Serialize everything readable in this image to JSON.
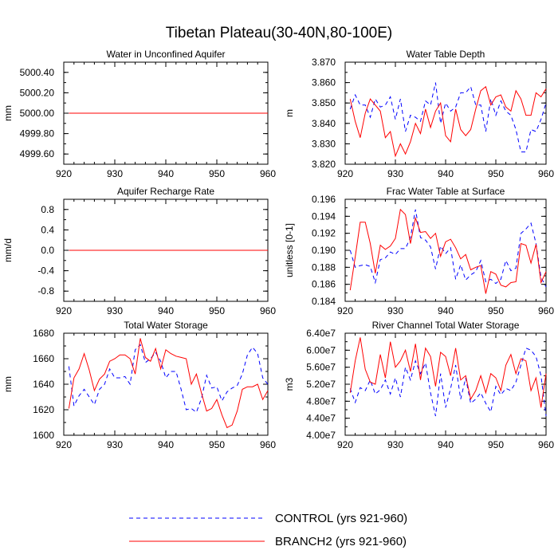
{
  "title": "Tibetan Plateau(30-40N,80-100E)",
  "colors": {
    "control": "#0000ff",
    "branch": "#ff0000"
  },
  "legend": [
    {
      "label": "CONTROL (yrs 921-960)",
      "color": "#0000ff",
      "style": "dashed"
    },
    {
      "label": "BRANCH2 (yrs 921-960)",
      "color": "#ff0000",
      "style": "solid"
    }
  ],
  "chart_data": [
    {
      "type": "line",
      "title": "Water in Unconfined Aquifer",
      "xlabel": "",
      "ylabel": "mm",
      "xlim": [
        920,
        960
      ],
      "ylim": [
        4999.5,
        5000.5
      ],
      "xticks": [
        920,
        930,
        940,
        950,
        960
      ],
      "yticks": [
        4999.6,
        4999.8,
        5000.0,
        5000.2,
        5000.4
      ],
      "ytick_labels": [
        "4999.60",
        "4999.80",
        "5000.00",
        "5000.20",
        "5000.40"
      ],
      "x": [
        921,
        960
      ],
      "series": [
        {
          "name": "CONTROL (yrs 921-960)",
          "values": [
            5000.0,
            5000.0
          ]
        },
        {
          "name": "BRANCH2 (yrs 921-960)",
          "values": [
            5000.0,
            5000.0
          ]
        }
      ]
    },
    {
      "type": "line",
      "title": "Water Table Depth",
      "xlabel": "",
      "ylabel": "m",
      "xlim": [
        920,
        960
      ],
      "ylim": [
        3.82,
        3.87
      ],
      "xticks": [
        920,
        930,
        940,
        950,
        960
      ],
      "yticks": [
        3.82,
        3.83,
        3.84,
        3.85,
        3.86,
        3.87
      ],
      "ytick_labels": [
        "3.820",
        "3.830",
        "3.840",
        "3.850",
        "3.860",
        "3.870"
      ],
      "x": [
        921,
        922,
        923,
        924,
        925,
        926,
        927,
        928,
        929,
        930,
        931,
        932,
        933,
        934,
        935,
        936,
        937,
        938,
        939,
        940,
        941,
        942,
        943,
        944,
        945,
        946,
        947,
        948,
        949,
        950,
        951,
        952,
        953,
        954,
        955,
        956,
        957,
        958,
        959,
        960
      ],
      "series": [
        {
          "name": "CONTROL (yrs 921-960)",
          "values": [
            3.847,
            3.854,
            3.849,
            3.849,
            3.843,
            3.852,
            3.848,
            3.849,
            3.853,
            3.842,
            3.852,
            3.836,
            3.844,
            3.843,
            3.841,
            3.851,
            3.849,
            3.86,
            3.84,
            3.85,
            3.846,
            3.848,
            3.855,
            3.855,
            3.858,
            3.849,
            3.849,
            3.836,
            3.852,
            3.844,
            3.851,
            3.846,
            3.844,
            3.837,
            3.826,
            3.826,
            3.837,
            3.836,
            3.842,
            3.85
          ]
        },
        {
          "name": "BRANCH2 (yrs 921-960)",
          "values": [
            3.852,
            3.841,
            3.833,
            3.845,
            3.852,
            3.849,
            3.846,
            3.833,
            3.836,
            3.824,
            3.83,
            3.825,
            3.831,
            3.84,
            3.835,
            3.847,
            3.838,
            3.846,
            3.85,
            3.834,
            3.831,
            3.847,
            3.837,
            3.834,
            3.837,
            3.847,
            3.856,
            3.858,
            3.849,
            3.853,
            3.854,
            3.848,
            3.846,
            3.856,
            3.852,
            3.844,
            3.844,
            3.855,
            3.853,
            3.857
          ]
        }
      ]
    },
    {
      "type": "line",
      "title": "Aquifer Recharge Rate",
      "xlabel": "",
      "ylabel": "mm/d",
      "xlim": [
        920,
        960
      ],
      "ylim": [
        -1.0,
        1.0
      ],
      "xticks": [
        920,
        930,
        940,
        950,
        960
      ],
      "yticks": [
        -0.8,
        -0.4,
        0.0,
        0.4,
        0.8
      ],
      "ytick_labels": [
        "-0.8",
        "-0.4",
        "0.0",
        "0.4",
        "0.8"
      ],
      "x": [
        921,
        960
      ],
      "series": [
        {
          "name": "CONTROL (yrs 921-960)",
          "values": [
            0.0,
            0.0
          ]
        },
        {
          "name": "BRANCH2 (yrs 921-960)",
          "values": [
            0.0,
            0.0
          ]
        }
      ]
    },
    {
      "type": "line",
      "title": "Frac Water Table at Surface",
      "xlabel": "",
      "ylabel": "unitless [0-1]",
      "xlim": [
        920,
        960
      ],
      "ylim": [
        0.184,
        0.196
      ],
      "xticks": [
        920,
        930,
        940,
        950,
        960
      ],
      "yticks": [
        0.184,
        0.186,
        0.188,
        0.19,
        0.192,
        0.194,
        0.196
      ],
      "ytick_labels": [
        "0.184",
        "0.186",
        "0.188",
        "0.190",
        "0.192",
        "0.194",
        "0.196"
      ],
      "x": [
        921,
        922,
        923,
        924,
        925,
        926,
        927,
        928,
        929,
        930,
        931,
        932,
        933,
        934,
        935,
        936,
        937,
        938,
        939,
        940,
        941,
        942,
        943,
        944,
        945,
        946,
        947,
        948,
        949,
        950,
        951,
        952,
        953,
        954,
        955,
        956,
        957,
        958,
        959,
        960
      ],
      "series": [
        {
          "name": "CONTROL (yrs 921-960)",
          "values": [
            0.19,
            0.188,
            0.1882,
            0.1883,
            0.1881,
            0.1862,
            0.1889,
            0.1891,
            0.1898,
            0.1895,
            0.1902,
            0.1902,
            0.1915,
            0.1948,
            0.1915,
            0.1912,
            0.1904,
            0.1878,
            0.1905,
            0.1896,
            0.1903,
            0.1866,
            0.1883,
            0.1865,
            0.1871,
            0.1875,
            0.1888,
            0.1863,
            0.1866,
            0.1861,
            0.1866,
            0.1888,
            0.1876,
            0.1879,
            0.192,
            0.1925,
            0.1932,
            0.1908,
            0.1868,
            0.1857
          ]
        },
        {
          "name": "BRANCH2 (yrs 921-960)",
          "values": [
            0.1853,
            0.1892,
            0.1933,
            0.1933,
            0.1908,
            0.1873,
            0.1906,
            0.1901,
            0.1905,
            0.1914,
            0.1948,
            0.1942,
            0.1908,
            0.1938,
            0.1921,
            0.1922,
            0.1914,
            0.192,
            0.1893,
            0.191,
            0.1913,
            0.1903,
            0.189,
            0.1895,
            0.1877,
            0.188,
            0.1882,
            0.1849,
            0.1875,
            0.1872,
            0.1859,
            0.1857,
            0.1862,
            0.1863,
            0.1908,
            0.1906,
            0.1885,
            0.1907,
            0.1862,
            0.1875
          ]
        }
      ]
    },
    {
      "type": "line",
      "title": "Total Water Storage",
      "xlabel": "",
      "ylabel": "mm",
      "xlim": [
        920,
        960
      ],
      "ylim": [
        1600,
        1680
      ],
      "xticks": [
        920,
        930,
        940,
        950,
        960
      ],
      "yticks": [
        1600,
        1620,
        1640,
        1660,
        1680
      ],
      "ytick_labels": [
        "1600",
        "1620",
        "1640",
        "1660",
        "1680"
      ],
      "x": [
        921,
        922,
        923,
        924,
        925,
        926,
        927,
        928,
        929,
        930,
        931,
        932,
        933,
        934,
        935,
        936,
        937,
        938,
        939,
        940,
        941,
        942,
        943,
        944,
        945,
        946,
        947,
        948,
        949,
        950,
        951,
        952,
        953,
        954,
        955,
        956,
        957,
        958,
        959,
        960
      ],
      "series": [
        {
          "name": "CONTROL (yrs 921-960)",
          "values": [
            1654,
            1623,
            1631,
            1636,
            1630,
            1624,
            1636,
            1640,
            1652,
            1645,
            1645,
            1646,
            1640,
            1667,
            1671,
            1657,
            1660,
            1665,
            1658,
            1645,
            1650,
            1650,
            1636,
            1620,
            1621,
            1618,
            1629,
            1647,
            1637,
            1638,
            1627,
            1634,
            1637,
            1639,
            1648,
            1663,
            1669,
            1664,
            1645,
            1640
          ]
        },
        {
          "name": "BRANCH2 (yrs 921-960)",
          "values": [
            1621,
            1645,
            1652,
            1664,
            1651,
            1635,
            1644,
            1648,
            1658,
            1660,
            1663,
            1663,
            1660,
            1648,
            1676,
            1661,
            1658,
            1668,
            1652,
            1667,
            1664,
            1662,
            1661,
            1660,
            1640,
            1648,
            1633,
            1619,
            1621,
            1628,
            1616,
            1606,
            1608,
            1619,
            1636,
            1638,
            1638,
            1640,
            1628,
            1635
          ]
        }
      ]
    },
    {
      "type": "line",
      "title": "River Channel Total Water Storage",
      "xlabel": "",
      "ylabel": "m3",
      "xlim": [
        920,
        960
      ],
      "ylim": [
        40000000,
        64000000
      ],
      "xticks": [
        920,
        930,
        940,
        950,
        960
      ],
      "yticks": [
        40000000,
        44000000,
        48000000,
        52000000,
        56000000,
        60000000,
        64000000
      ],
      "ytick_labels": [
        "4.00e7",
        "4.40e7",
        "4.80e7",
        "5.20e7",
        "5.60e7",
        "6.00e7",
        "6.40e7"
      ],
      "x": [
        921,
        922,
        923,
        924,
        925,
        926,
        927,
        928,
        929,
        930,
        931,
        932,
        933,
        934,
        935,
        936,
        937,
        938,
        939,
        940,
        941,
        942,
        943,
        944,
        945,
        946,
        947,
        948,
        949,
        950,
        951,
        952,
        953,
        954,
        955,
        956,
        957,
        958,
        959,
        960
      ],
      "series": [
        {
          "name": "CONTROL (yrs 921-960)",
          "values": [
            51000000,
            47700000,
            51200000,
            50500000,
            53000000,
            49700000,
            50700000,
            53000000,
            49700000,
            53500000,
            49000000,
            56000000,
            53000000,
            57500000,
            54500000,
            57000000,
            50000000,
            44500000,
            54500000,
            46500000,
            51000000,
            56500000,
            48500000,
            53500000,
            47500000,
            48500000,
            50000000,
            47500000,
            45500000,
            51500000,
            49500000,
            51000000,
            50500000,
            52500000,
            56500000,
            60500000,
            60000000,
            58500000,
            54000000,
            44500000
          ]
        },
        {
          "name": "BRANCH2 (yrs 921-960)",
          "values": [
            50000000,
            57500000,
            63000000,
            55500000,
            52500000,
            52000000,
            59000000,
            53500000,
            62000000,
            56000000,
            57500000,
            60000000,
            55000000,
            61500000,
            53000000,
            60500000,
            58500000,
            51500000,
            59500000,
            58500000,
            54000000,
            60500000,
            53000000,
            54000000,
            48500000,
            50500000,
            54000000,
            50000000,
            54500000,
            53500000,
            50500000,
            56500000,
            59000000,
            54500000,
            58000000,
            57500000,
            50500000,
            53500000,
            46500000,
            54500000
          ]
        }
      ]
    }
  ]
}
